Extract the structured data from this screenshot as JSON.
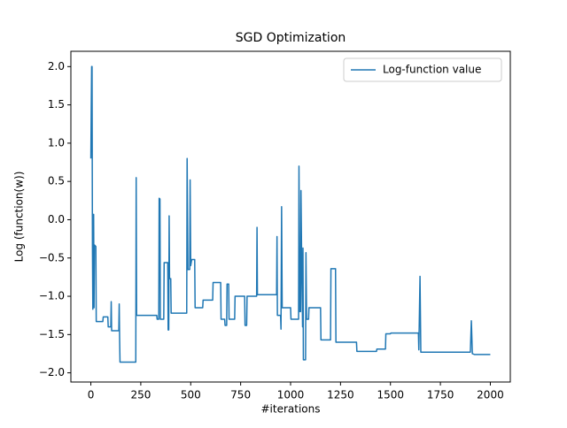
{
  "chart_data": {
    "type": "line",
    "title": "SGD Optimization",
    "x_label": "#iterations",
    "y_label": "Log (function(w))",
    "x": [
      0,
      2,
      4,
      6,
      8,
      10,
      12,
      14,
      16,
      18,
      25,
      27,
      60,
      62,
      85,
      87,
      100,
      102,
      104,
      140,
      142,
      144,
      146,
      225,
      227,
      229,
      330,
      332,
      340,
      342,
      346,
      348,
      365,
      367,
      385,
      387,
      390,
      392,
      394,
      400,
      402,
      480,
      482,
      486,
      495,
      497,
      500,
      505,
      520,
      522,
      560,
      562,
      610,
      612,
      650,
      652,
      670,
      672,
      680,
      682,
      690,
      692,
      720,
      722,
      770,
      772,
      780,
      782,
      830,
      832,
      834,
      930,
      932,
      934,
      950,
      952,
      955,
      958,
      1000,
      1002,
      1040,
      1042,
      1046,
      1050,
      1052,
      1055,
      1060,
      1062,
      1064,
      1075,
      1077,
      1080,
      1090,
      1092,
      1150,
      1152,
      1200,
      1202,
      1225,
      1227,
      1330,
      1332,
      1430,
      1432,
      1475,
      1477,
      1500,
      1502,
      1640,
      1642,
      1648,
      1652,
      1900,
      1905,
      1910,
      1920,
      2000
    ],
    "series": [
      {
        "name": "Log-function value",
        "color": "#1f77b4",
        "values": [
          0.8,
          1.45,
          2.0,
          2.0,
          -0.35,
          -1.17,
          -0.3,
          0.07,
          -1.15,
          -0.33,
          -0.35,
          -1.33,
          -1.33,
          -1.27,
          -1.27,
          -1.4,
          -1.4,
          -1.07,
          -1.45,
          -1.45,
          -1.1,
          -1.55,
          -1.86,
          -1.86,
          0.55,
          -1.25,
          -1.25,
          -1.3,
          -1.3,
          0.28,
          0.27,
          -1.3,
          -1.3,
          -0.56,
          -0.56,
          -1.44,
          -1.44,
          0.05,
          -0.77,
          -0.77,
          -1.22,
          -1.22,
          0.8,
          -0.65,
          -0.65,
          0.52,
          -0.6,
          -0.52,
          -0.52,
          -1.15,
          -1.15,
          -1.05,
          -1.05,
          -0.82,
          -0.82,
          -1.3,
          -1.3,
          -1.38,
          -1.38,
          -0.84,
          -0.84,
          -1.3,
          -1.3,
          -1.0,
          -1.0,
          -1.38,
          -1.38,
          -1.0,
          -1.0,
          -0.1,
          -0.98,
          -0.98,
          -0.22,
          -1.25,
          -1.25,
          -1.43,
          0.17,
          -1.15,
          -1.15,
          -1.3,
          -1.3,
          0.7,
          -1.2,
          -1.2,
          0.38,
          -0.4,
          -1.4,
          -0.37,
          -1.83,
          -1.83,
          -0.43,
          -1.3,
          -1.3,
          -1.15,
          -1.15,
          -1.57,
          -1.57,
          -0.64,
          -0.64,
          -1.6,
          -1.6,
          -1.72,
          -1.72,
          -1.69,
          -1.69,
          -1.49,
          -1.49,
          -1.48,
          -1.48,
          -1.7,
          -0.74,
          -1.73,
          -1.73,
          -1.32,
          -1.75,
          -1.76,
          -1.76
        ]
      }
    ],
    "xlim": [
      -100,
      2100
    ],
    "ylim": [
      -2.12,
      2.2
    ],
    "xticks": [
      0,
      250,
      500,
      750,
      1000,
      1250,
      1500,
      1750,
      2000
    ],
    "yticks": [
      {
        "value": -2.0,
        "label": "−2.0"
      },
      {
        "value": -1.5,
        "label": "−1.5"
      },
      {
        "value": -1.0,
        "label": "−1.0"
      },
      {
        "value": -0.5,
        "label": "−0.5"
      },
      {
        "value": 0.0,
        "label": "0.0"
      },
      {
        "value": 0.5,
        "label": "0.5"
      },
      {
        "value": 1.0,
        "label": "1.0"
      },
      {
        "value": 1.5,
        "label": "1.5"
      },
      {
        "value": 2.0,
        "label": "2.0"
      }
    ],
    "grid": false,
    "legend": "upper-right"
  }
}
